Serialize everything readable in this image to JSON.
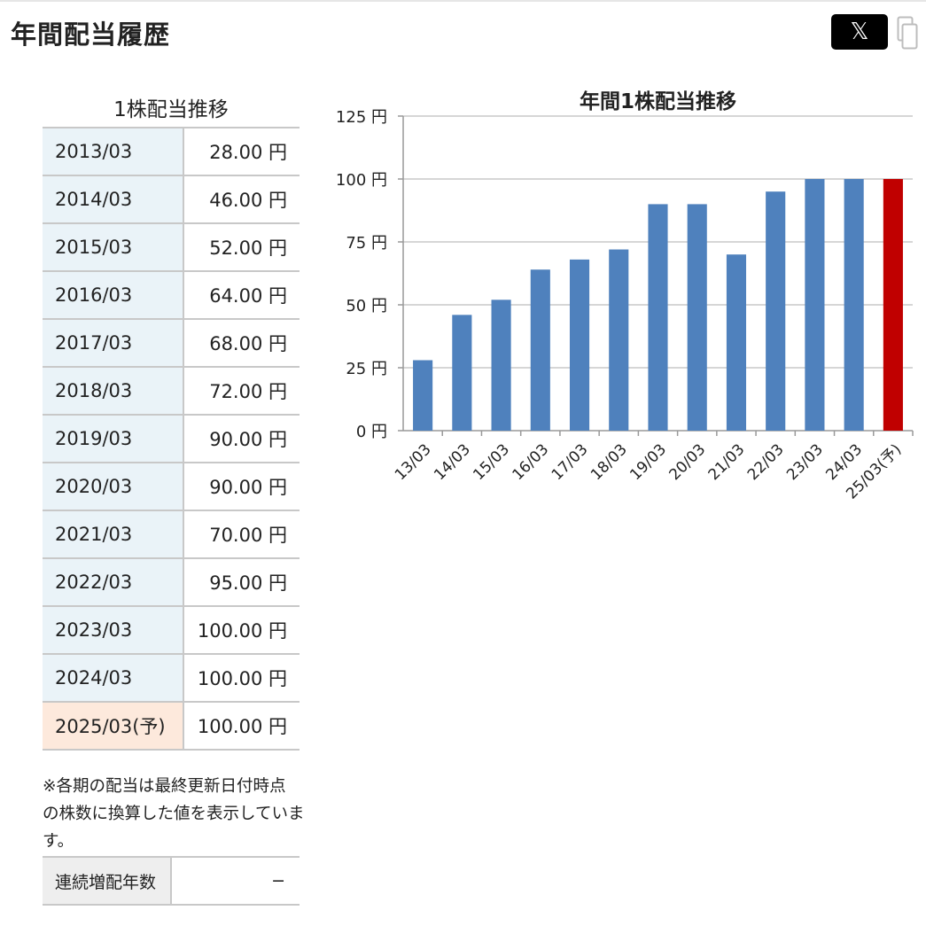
{
  "header": {
    "title": "年間配当履歴",
    "share_label": "𝕏",
    "share_icon": "x-logo-icon",
    "copy_icon": "copy-icon"
  },
  "table": {
    "caption": "1株配当推移",
    "rows": [
      {
        "period": "2013/03",
        "amount": "28.00 円"
      },
      {
        "period": "2014/03",
        "amount": "46.00 円"
      },
      {
        "period": "2015/03",
        "amount": "52.00 円"
      },
      {
        "period": "2016/03",
        "amount": "64.00 円"
      },
      {
        "period": "2017/03",
        "amount": "68.00 円"
      },
      {
        "period": "2018/03",
        "amount": "72.00 円"
      },
      {
        "period": "2019/03",
        "amount": "90.00 円"
      },
      {
        "period": "2020/03",
        "amount": "90.00 円"
      },
      {
        "period": "2021/03",
        "amount": "70.00 円"
      },
      {
        "period": "2022/03",
        "amount": "95.00 円"
      },
      {
        "period": "2023/03",
        "amount": "100.00 円"
      },
      {
        "period": "2024/03",
        "amount": "100.00 円"
      },
      {
        "period": "2025/03(予)",
        "amount": "100.00 円"
      }
    ],
    "forecast_color": "#fde9dc",
    "row_color": "#eaf3f8"
  },
  "note": {
    "line1": "※各期の配当は最終更新日付時点",
    "line2": "の株数に換算した値を表示しています。"
  },
  "streak": {
    "label": "連続増配年数",
    "value": "−"
  },
  "chart_data": {
    "type": "bar",
    "title": "年間1株配当推移",
    "categories": [
      "13/03",
      "14/03",
      "15/03",
      "16/03",
      "17/03",
      "18/03",
      "19/03",
      "20/03",
      "21/03",
      "22/03",
      "23/03",
      "24/03",
      "25/03(予)"
    ],
    "values": [
      28,
      46,
      52,
      64,
      68,
      72,
      90,
      90,
      70,
      95,
      100,
      100,
      100
    ],
    "ylim": [
      0,
      125
    ],
    "yticks": [
      0,
      25,
      50,
      75,
      100,
      125
    ],
    "y_unit": " 円",
    "grid": true,
    "bar_color": "#4f81bd",
    "forecast_bar_color": "#c00000",
    "forecast_index": 12,
    "xlabel": "",
    "ylabel": ""
  }
}
